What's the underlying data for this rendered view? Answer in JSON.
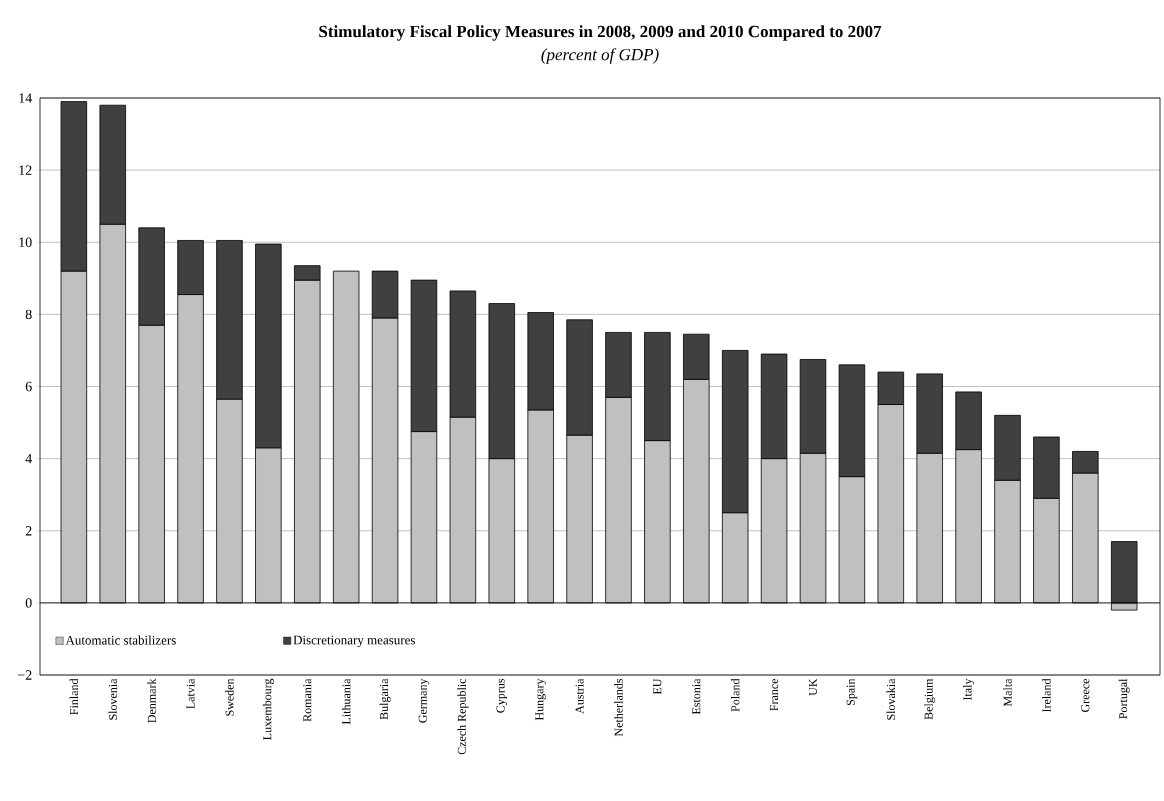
{
  "chart_data": {
    "type": "bar",
    "stacked": true,
    "title": "Stimulatory Fiscal Policy Measures in 2008, 2009 and 2010 Compared to 2007",
    "subtitle": "(percent of GDP)",
    "categories": [
      "Finland",
      "Slovenia",
      "Denmark",
      "Latvia",
      "Sweden",
      "Luxembourg",
      "Romania",
      "Lithuania",
      "Bulgaria",
      "Germany",
      "Czech Republic",
      "Cyprus",
      "Hungary",
      "Austria",
      "Netherlands",
      "EU",
      "Estonia",
      "Poland",
      "France",
      "UK",
      "Spain",
      "Slovakia",
      "Belgium",
      "Italy",
      "Malta",
      "Ireland",
      "Greece",
      "Portugal"
    ],
    "series": [
      {
        "name": "Automatic stabilizers",
        "color": "#c0c0c0",
        "values": [
          9.2,
          10.5,
          7.7,
          8.55,
          5.65,
          4.3,
          8.95,
          9.2,
          7.9,
          4.75,
          5.15,
          4.0,
          5.35,
          4.65,
          5.7,
          4.5,
          6.2,
          2.5,
          4.0,
          4.15,
          3.5,
          5.5,
          4.15,
          4.25,
          3.4,
          2.9,
          3.6,
          -0.2
        ]
      },
      {
        "name": "Discretionary measures",
        "color": "#404040",
        "values": [
          4.7,
          3.3,
          2.7,
          1.5,
          4.4,
          5.65,
          0.4,
          0,
          1.3,
          4.2,
          3.5,
          4.3,
          2.7,
          3.2,
          1.8,
          3.0,
          1.25,
          4.5,
          2.9,
          2.6,
          3.1,
          0.9,
          2.2,
          1.6,
          1.8,
          1.7,
          0.6,
          1.7
        ]
      }
    ],
    "ylim": [
      -2,
      14
    ],
    "yticks": [
      {
        "value": -2,
        "label": "−2"
      },
      0,
      2,
      4,
      6,
      8,
      10,
      12,
      14
    ],
    "grid": "y",
    "legend": "bottom left"
  }
}
